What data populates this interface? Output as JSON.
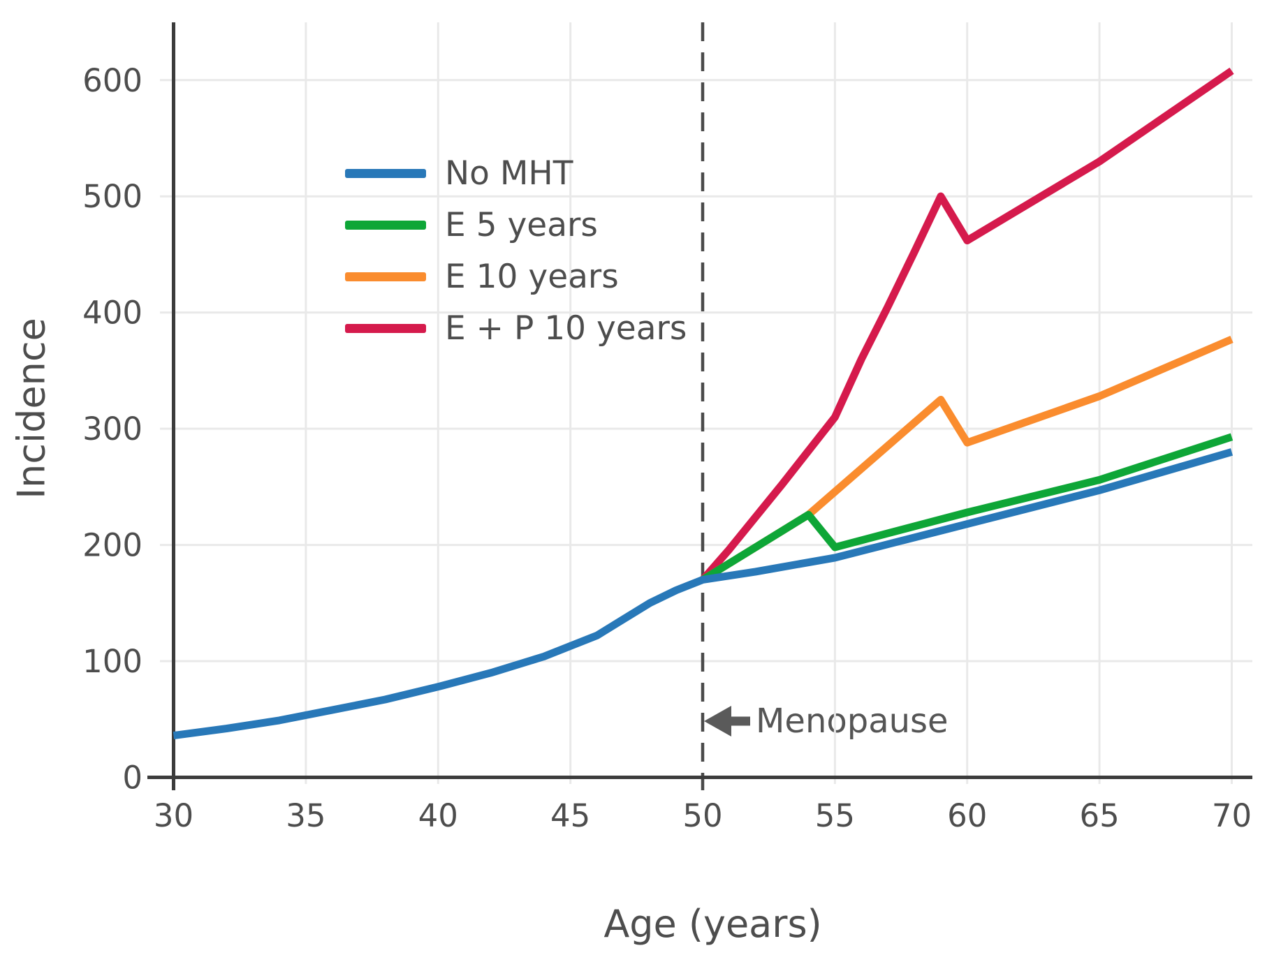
{
  "chart_data": {
    "type": "line",
    "title": "",
    "xlabel": "Age (years)",
    "ylabel": "Incidence",
    "x_ticks": [
      30,
      35,
      40,
      45,
      50,
      55,
      60,
      65,
      70
    ],
    "y_ticks": [
      0,
      100,
      200,
      300,
      400,
      500,
      600
    ],
    "xlim": [
      30,
      70
    ],
    "ylim": [
      0,
      655
    ],
    "grid": true,
    "legend_position": "upper left inside plot",
    "reference_line": {
      "type": "vertical-dashed",
      "x": 50
    },
    "menopause_annotation": {
      "text": "Menopause",
      "arrow": "points left to dashed line at age 50",
      "y_value": 48
    },
    "series": [
      {
        "name": "No MHT",
        "color": "#2878b8",
        "points": [
          [
            30,
            36
          ],
          [
            32,
            42
          ],
          [
            34,
            49
          ],
          [
            36,
            58
          ],
          [
            38,
            67
          ],
          [
            40,
            78
          ],
          [
            42,
            90
          ],
          [
            44,
            104
          ],
          [
            45,
            113
          ],
          [
            46,
            122
          ],
          [
            47,
            136
          ],
          [
            48,
            150
          ],
          [
            49,
            161
          ],
          [
            50,
            170
          ],
          [
            52,
            177
          ],
          [
            55,
            189
          ],
          [
            60,
            218
          ],
          [
            65,
            247
          ],
          [
            70,
            280
          ]
        ]
      },
      {
        "name": "E 5 years",
        "color": "#0ea637",
        "points": [
          [
            50,
            170
          ],
          [
            54,
            226
          ],
          [
            55,
            198
          ],
          [
            60,
            228
          ],
          [
            65,
            256
          ],
          [
            70,
            293
          ]
        ]
      },
      {
        "name": "E 10 years",
        "color": "#fa8c2e",
        "points": [
          [
            50,
            170
          ],
          [
            54,
            226
          ],
          [
            59,
            325
          ],
          [
            60,
            288
          ],
          [
            65,
            328
          ],
          [
            70,
            377
          ]
        ]
      },
      {
        "name": "E + P 10 years",
        "color": "#d51a4c",
        "points": [
          [
            50,
            170
          ],
          [
            51,
            196
          ],
          [
            53,
            252
          ],
          [
            55,
            310
          ],
          [
            56,
            360
          ],
          [
            57,
            405
          ],
          [
            58,
            452
          ],
          [
            59,
            500
          ],
          [
            60,
            462
          ],
          [
            65,
            530
          ],
          [
            70,
            608
          ]
        ]
      }
    ]
  },
  "styles": {
    "axis_color": "#3c3c3c",
    "grid_color": "#e9e9e9",
    "dashed_line_color": "#4a4a4a",
    "arrow_color": "#5a5a5a",
    "text_color": "#4d4d4d",
    "background": "#ffffff"
  }
}
